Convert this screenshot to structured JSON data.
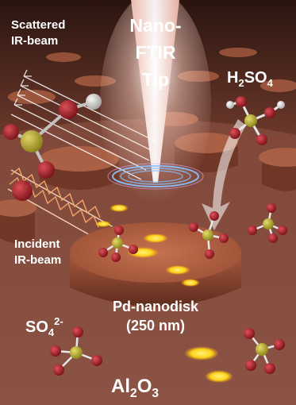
{
  "labels": {
    "tip_line1": "Nano-",
    "tip_line2": "FTIR",
    "tip_line3": "Tip",
    "scattered_line1": "Scattered",
    "scattered_line2": "IR-beam",
    "incident_line1": "Incident",
    "incident_line2": "IR-beam",
    "h2so4_h": "H",
    "h2so4_sub2": "2",
    "h2so4_so": "SO",
    "h2so4_sub4": "4",
    "so4_base": "SO",
    "so4_sub": "4",
    "so4_charge": "2-",
    "disk_line1": "Pd-nanodisk",
    "disk_line2": "(250 nm)",
    "al_base": "Al",
    "al_sub": "2",
    "o_base": "O",
    "o_sub": "3"
  },
  "colors": {
    "background_dark": "#2a1410",
    "surface": "#8a4a38",
    "disk": "#b36242",
    "glow": "#ffe04a",
    "ring": "#7fb8ff",
    "sulfur": "#b9b02c",
    "oxygen": "#b0202a",
    "hydrogen": "#f2f2f2"
  }
}
